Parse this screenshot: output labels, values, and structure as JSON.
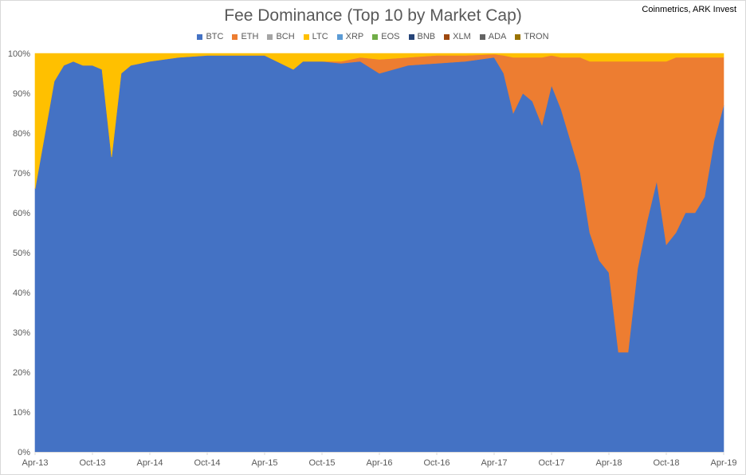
{
  "chart_data": {
    "type": "area",
    "stacked": "percent",
    "title": "Fee Dominance (Top 10 by Market Cap)",
    "source": "Coinmetrics, ARK Invest",
    "legend_position": "top",
    "grid": false,
    "ylim": [
      0,
      100
    ],
    "y_ticks": [
      "0%",
      "10%",
      "20%",
      "30%",
      "40%",
      "50%",
      "60%",
      "70%",
      "80%",
      "90%",
      "100%"
    ],
    "x_ticks": [
      "Apr-13",
      "Oct-13",
      "Apr-14",
      "Oct-14",
      "Apr-15",
      "Oct-15",
      "Apr-16",
      "Oct-16",
      "Apr-17",
      "Oct-17",
      "Apr-18",
      "Oct-18",
      "Apr-19"
    ],
    "legend": [
      {
        "name": "BTC",
        "color": "#4472c4"
      },
      {
        "name": "ETH",
        "color": "#ed7d31"
      },
      {
        "name": "BCH",
        "color": "#a5a5a5"
      },
      {
        "name": "LTC",
        "color": "#ffc000"
      },
      {
        "name": "XRP",
        "color": "#5b9bd5"
      },
      {
        "name": "EOS",
        "color": "#70ad47"
      },
      {
        "name": "BNB",
        "color": "#264478"
      },
      {
        "name": "XLM",
        "color": "#9e480e"
      },
      {
        "name": "ADA",
        "color": "#636363"
      },
      {
        "name": "TRON",
        "color": "#997300"
      }
    ],
    "x": [
      "Apr-13",
      "Jun-13",
      "Jul-13",
      "Aug-13",
      "Sep-13",
      "Oct-13",
      "Nov-13",
      "Dec-13",
      "Jan-14",
      "Feb-14",
      "Apr-14",
      "Jul-14",
      "Oct-14",
      "Jan-15",
      "Apr-15",
      "Jul-15",
      "Aug-15",
      "Oct-15",
      "Dec-15",
      "Feb-16",
      "Apr-16",
      "Jul-16",
      "Oct-16",
      "Jan-17",
      "Apr-17",
      "May-17",
      "Jun-17",
      "Jul-17",
      "Aug-17",
      "Sep-17",
      "Oct-17",
      "Nov-17",
      "Dec-17",
      "Jan-18",
      "Feb-18",
      "Mar-18",
      "Apr-18",
      "May-18",
      "Jun-18",
      "Jul-18",
      "Aug-18",
      "Sep-18",
      "Oct-18",
      "Nov-18",
      "Dec-18",
      "Jan-19",
      "Feb-19",
      "Mar-19",
      "Apr-19"
    ],
    "series": [
      {
        "name": "BTC",
        "values": [
          66,
          93,
          97,
          98,
          97,
          97,
          96,
          74,
          95,
          97,
          98,
          99,
          99.5,
          99.5,
          99.5,
          96,
          98,
          98,
          97.5,
          98,
          95,
          97,
          97.5,
          98,
          99,
          95,
          85,
          90,
          88,
          82,
          92,
          86,
          78,
          70,
          55,
          48,
          45,
          25,
          25,
          46,
          58,
          68,
          52,
          55,
          60,
          60,
          64,
          78,
          87
        ]
      },
      {
        "name": "ETH",
        "values": [
          0,
          0,
          0,
          0,
          0,
          0,
          0,
          0,
          0,
          0,
          0,
          0,
          0,
          0,
          0,
          0,
          0,
          0,
          0.5,
          1,
          3.5,
          2,
          2,
          1.5,
          0.8,
          4.5,
          14,
          9,
          11,
          17,
          7.5,
          13,
          21,
          29,
          43,
          50,
          53,
          73,
          73,
          52,
          40,
          30,
          46,
          44,
          39,
          39,
          35,
          21,
          12
        ]
      },
      {
        "name": "LTC",
        "values": [
          34,
          7,
          3,
          2,
          3,
          3,
          4,
          26,
          5,
          3,
          2,
          1,
          0.5,
          0.5,
          0.5,
          4,
          2,
          2,
          2,
          1,
          1.5,
          1,
          0.5,
          0.5,
          0.2,
          0.5,
          1,
          1,
          1,
          1,
          0.5,
          1,
          1,
          1,
          2,
          2,
          2,
          2,
          2,
          2,
          2,
          2,
          2,
          1,
          1,
          1,
          1,
          1,
          1
        ]
      }
    ]
  }
}
